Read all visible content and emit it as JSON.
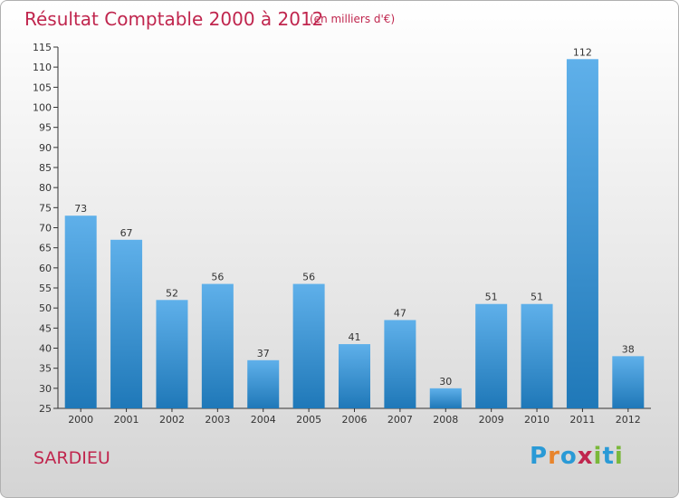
{
  "title": "Résultat Comptable 2000 à 2012",
  "subtitle": "(en milliers d'€)",
  "town": "SARDIEU",
  "logo": {
    "text": "Proxiti",
    "letters": [
      "P",
      "r",
      "o",
      "x",
      "i",
      "t",
      "i"
    ],
    "colors": [
      "#2a9ad6",
      "#e8842c",
      "#2a9ad6",
      "#c0264e",
      "#7ab83a",
      "#2a9ad6",
      "#7ab83a"
    ]
  },
  "colors": {
    "title": "#c0264e",
    "bar_light": "#5fb0ea",
    "bar_dark": "#1f78b8",
    "axis": "#333333"
  },
  "chart_data": {
    "type": "bar",
    "categories": [
      "2000",
      "2001",
      "2002",
      "2003",
      "2004",
      "2005",
      "2006",
      "2007",
      "2008",
      "2009",
      "2010",
      "2011",
      "2012"
    ],
    "values": [
      73,
      67,
      52,
      56,
      37,
      56,
      41,
      47,
      30,
      51,
      51,
      112,
      38
    ],
    "data_labels": [
      "73",
      "67",
      "52",
      "56",
      "37",
      "56",
      "41",
      "47",
      "30",
      "51",
      "51",
      "112",
      "38"
    ],
    "ylim": [
      25,
      115
    ],
    "yticks": [
      25,
      30,
      35,
      40,
      45,
      50,
      55,
      60,
      65,
      70,
      75,
      80,
      85,
      90,
      95,
      100,
      105,
      110,
      115
    ],
    "grid": false,
    "legend": "none"
  }
}
